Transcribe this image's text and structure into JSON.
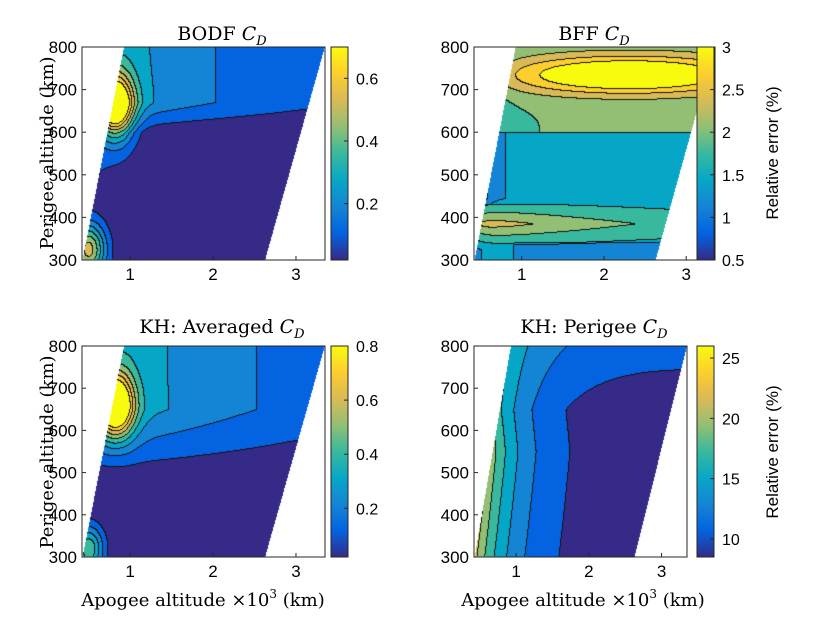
{
  "figure": {
    "colorbar_label": "Relative error (%)",
    "colormap": [
      "#352a87",
      "#0363e1",
      "#1485d4",
      "#06a7c6",
      "#38b99e",
      "#92bf73",
      "#d9ba56",
      "#fcce2e",
      "#f9fb0e"
    ]
  },
  "chart_data": [
    {
      "type": "heatmap",
      "title_prefix": "BODF",
      "title_math": "C",
      "title_sub": "D",
      "xlabel_prefix": "",
      "xlabel_exp": "",
      "xlabel_suffix": "",
      "ylabel": "Perigee altitude (km)",
      "colorbar_label": "",
      "x_ticks": [
        "1",
        "2",
        "3"
      ],
      "y_ticks": [
        "300",
        "400",
        "500",
        "600",
        "700",
        "800"
      ],
      "colorbar_ticks": [
        "0.2",
        "0.4",
        "0.6"
      ],
      "xlim": [
        0.42,
        3.35
      ],
      "ylim": [
        300,
        800
      ],
      "clim": [
        0.02,
        0.7
      ],
      "field": "bodf"
    },
    {
      "type": "heatmap",
      "title_prefix": "BFF",
      "title_math": "C",
      "title_sub": "D",
      "xlabel_prefix": "",
      "xlabel_exp": "",
      "xlabel_suffix": "",
      "ylabel": "",
      "colorbar_label": "Relative error (%)",
      "x_ticks": [
        "1",
        "2",
        "3"
      ],
      "y_ticks": [
        "300",
        "400",
        "500",
        "600",
        "700",
        "800"
      ],
      "colorbar_ticks": [
        "0.5",
        "1",
        "1.5",
        "2",
        "2.5",
        "3"
      ],
      "xlim": [
        0.42,
        3.35
      ],
      "ylim": [
        300,
        800
      ],
      "clim": [
        0.5,
        3.0
      ],
      "field": "bff"
    },
    {
      "type": "heatmap",
      "title_prefix": "KH: Averaged",
      "title_math": "C",
      "title_sub": "D",
      "xlabel_prefix": "Apogee altitude ×10",
      "xlabel_exp": "3",
      "xlabel_suffix": " (km)",
      "ylabel": "Perigee altitude (km)",
      "colorbar_label": "",
      "x_ticks": [
        "1",
        "2",
        "3"
      ],
      "y_ticks": [
        "300",
        "400",
        "500",
        "600",
        "700",
        "800"
      ],
      "colorbar_ticks": [
        "0.2",
        "0.4",
        "0.6",
        "0.8"
      ],
      "xlim": [
        0.42,
        3.35
      ],
      "ylim": [
        300,
        800
      ],
      "clim": [
        0.02,
        0.8
      ],
      "field": "kh_avg"
    },
    {
      "type": "heatmap",
      "title_prefix": "KH: Perigee",
      "title_math": "C",
      "title_sub": "D",
      "xlabel_prefix": "Apogee altitude ×10",
      "xlabel_exp": "3",
      "xlabel_suffix": " (km)",
      "ylabel": "",
      "colorbar_label": "Relative error (%)",
      "x_ticks": [
        "1",
        "2",
        "3"
      ],
      "y_ticks": [
        "300",
        "400",
        "500",
        "600",
        "700",
        "800"
      ],
      "colorbar_ticks": [
        "10",
        "15",
        "20",
        "25"
      ],
      "xlim": [
        0.42,
        3.35
      ],
      "ylim": [
        300,
        800
      ],
      "clim": [
        8.5,
        26
      ],
      "field": "kh_per"
    }
  ]
}
